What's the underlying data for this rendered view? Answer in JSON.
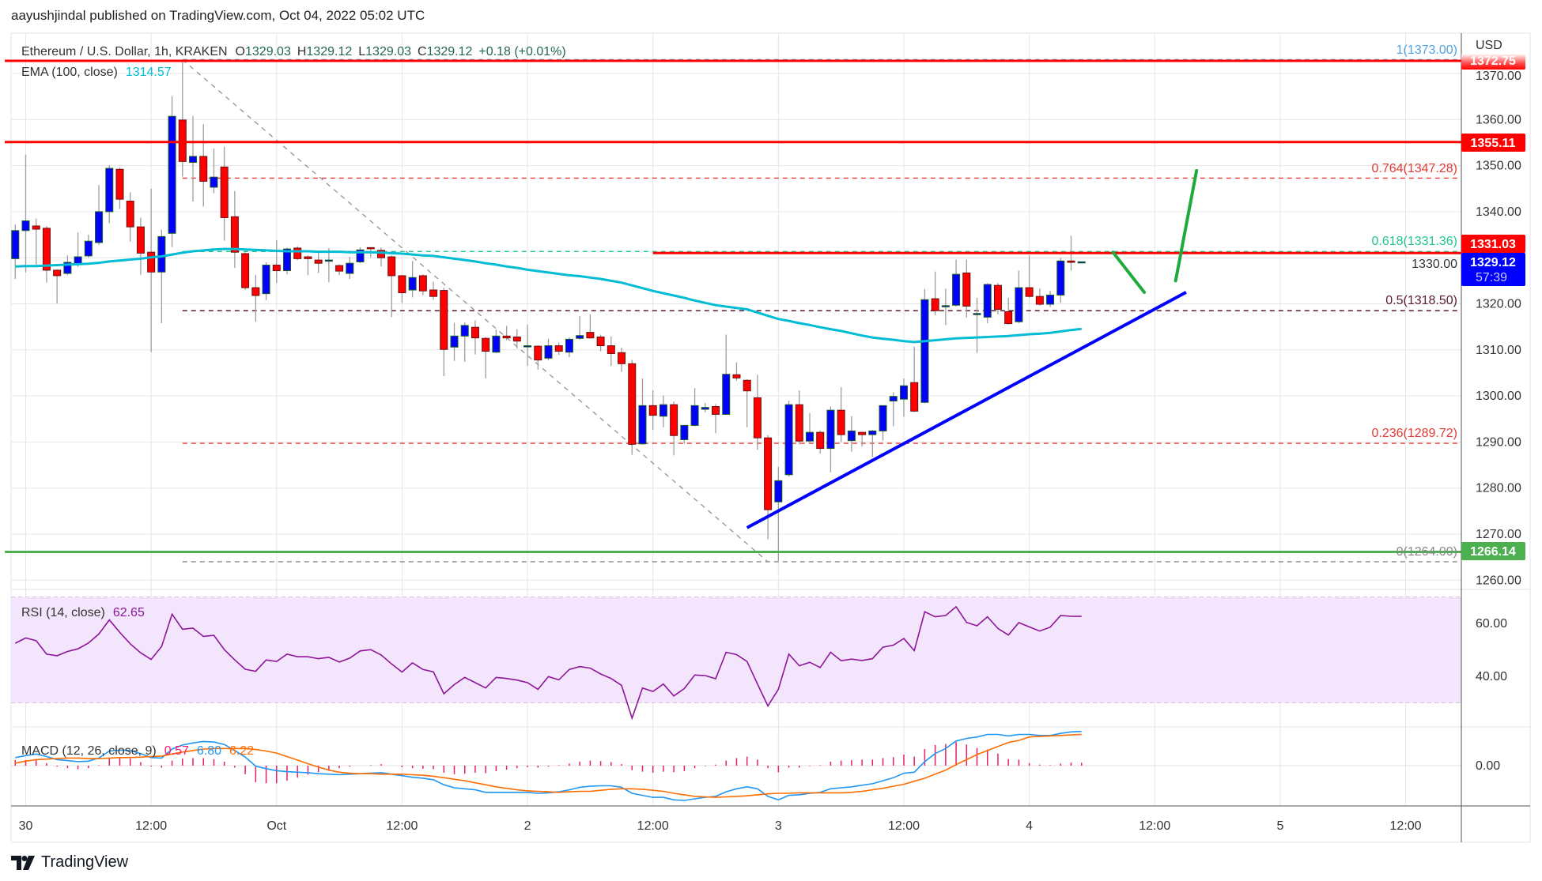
{
  "header": {
    "publish_line": "aayushjindal published on TradingView.com, Oct 04, 2022 05:02 UTC"
  },
  "legend": {
    "symbol": "Ethereum / U.S. Dollar, 1h, KRAKEN",
    "o_label": "O",
    "o_value": "1329.03",
    "h_label": "H",
    "h_value": "1329.12",
    "l_label": "L",
    "l_value": "1329.03",
    "c_label": "C",
    "c_value": "1329.12",
    "change": "+0.18 (+0.01%)",
    "ema_label": "EMA (100, close)",
    "ema_value": "1314.57",
    "rsi_label": "RSI (14, close)",
    "rsi_value": "62.65",
    "macd_label": "MACD (12, 26, close, 9)",
    "macd_hist": "0.57",
    "macd_value": "6.80",
    "macd_signal": "6.22"
  },
  "price_axis": {
    "currency": "USD",
    "ticks": [
      "1370.00",
      "1360.00",
      "1350.00",
      "1340.00",
      "1330.00",
      "1320.00",
      "1310.00",
      "1300.00",
      "1290.00",
      "1280.00",
      "1270.00",
      "1260.00"
    ],
    "badges": {
      "r1": "1372.75",
      "r2": "1355.11",
      "r3": "1331.03",
      "last": "1329.12",
      "countdown": "57:39",
      "support": "1266.14"
    }
  },
  "rsi_axis": {
    "ticks": [
      "60.00",
      "40.00"
    ]
  },
  "macd_axis": {
    "ticks": [
      "0.00"
    ]
  },
  "time_axis": {
    "labels": [
      "30",
      "12:00",
      "Oct",
      "12:00",
      "2",
      "12:00",
      "3",
      "12:00",
      "4",
      "12:00",
      "5",
      "12:00"
    ]
  },
  "fib_labels": {
    "l1": "1(1373.00)",
    "l0764": "0.764(1347.28)",
    "l0618": "0.618(1331.36)",
    "l05": "0.5(1318.50)",
    "l0236": "0.236(1289.72)",
    "l0": "0(1264.00)"
  },
  "logo": {
    "text": "TradingView"
  },
  "colors": {
    "up": "#0000ff",
    "down": "#ff0000",
    "ema": "#00bcd4",
    "rsi": "#8e1599",
    "macd": "#2196f3",
    "signal": "#ff6d00",
    "hist": "#e91e63",
    "resistance": "#ff0000",
    "support": "#4caf50",
    "trendline": "#0000ff",
    "projection": "#1faa3c"
  },
  "chart_data": {
    "type": "candlestick",
    "title": "Ethereum / U.S. Dollar, 1h, KRAKEN",
    "interval": "1h",
    "start": "2022-09-29 23:00",
    "ylim": [
      1255,
      1377
    ],
    "xlim": [
      "2022-09-29 22:00",
      "2022-10-05 17:00"
    ],
    "candles_ohlc": [
      [
        1329.8,
        1337.2,
        1325.4,
        1335.9
      ],
      [
        1335.9,
        1352.4,
        1326.8,
        1338.0
      ],
      [
        1336.9,
        1338.5,
        1328.5,
        1336.2
      ],
      [
        1336.4,
        1336.9,
        1324.6,
        1327.3
      ],
      [
        1327.3,
        1327.5,
        1320.1,
        1326.1
      ],
      [
        1326.6,
        1330.5,
        1326.2,
        1329.0
      ],
      [
        1328.6,
        1335.5,
        1328.0,
        1330.2
      ],
      [
        1330.4,
        1335.0,
        1330.0,
        1333.6
      ],
      [
        1333.3,
        1345.8,
        1332.8,
        1340.0
      ],
      [
        1340.0,
        1350.1,
        1337.5,
        1349.4
      ],
      [
        1349.2,
        1349.6,
        1340.6,
        1342.7
      ],
      [
        1342.3,
        1344.2,
        1333.5,
        1336.7
      ],
      [
        1336.7,
        1338.7,
        1326.3,
        1331.0
      ],
      [
        1331.2,
        1345.0,
        1309.5,
        1326.9
      ],
      [
        1326.9,
        1336.1,
        1315.8,
        1334.6
      ],
      [
        1335.3,
        1365.1,
        1332.3,
        1360.7
      ],
      [
        1359.9,
        1373.0,
        1347.6,
        1350.9
      ],
      [
        1350.7,
        1360.8,
        1342.2,
        1352.0
      ],
      [
        1352.0,
        1359.0,
        1341.1,
        1346.6
      ],
      [
        1345.3,
        1353.7,
        1344.0,
        1347.5
      ],
      [
        1349.7,
        1354.1,
        1333.7,
        1338.7
      ],
      [
        1338.9,
        1344.5,
        1327.8,
        1331.2
      ],
      [
        1330.9,
        1331.2,
        1323.0,
        1323.5
      ],
      [
        1323.5,
        1326.3,
        1316.1,
        1321.8
      ],
      [
        1322.2,
        1329.0,
        1320.8,
        1328.4
      ],
      [
        1328.4,
        1333.8,
        1324.5,
        1327.2
      ],
      [
        1327.2,
        1332.2,
        1326.4,
        1331.9
      ],
      [
        1332.1,
        1332.5,
        1329.5,
        1329.8
      ],
      [
        1330.2,
        1330.5,
        1326.2,
        1329.8
      ],
      [
        1329.5,
        1331.1,
        1326.7,
        1328.8
      ],
      [
        1329.5,
        1332.1,
        1324.7,
        1329.5
      ],
      [
        1328.3,
        1328.6,
        1326.2,
        1327.1
      ],
      [
        1326.6,
        1330.2,
        1325.4,
        1328.8
      ],
      [
        1329.1,
        1332.3,
        1328.8,
        1331.7
      ],
      [
        1332.2,
        1332.3,
        1330.1,
        1332.1
      ],
      [
        1331.6,
        1332.2,
        1328.1,
        1330.0
      ],
      [
        1330.2,
        1330.5,
        1317.1,
        1326.1
      ],
      [
        1326.1,
        1326.3,
        1320.2,
        1322.4
      ],
      [
        1323.0,
        1329.3,
        1321.4,
        1325.7
      ],
      [
        1326.1,
        1326.4,
        1321.9,
        1322.8
      ],
      [
        1323.0,
        1324.8,
        1320.9,
        1321.6
      ],
      [
        1322.9,
        1323.5,
        1304.3,
        1310.1
      ],
      [
        1310.6,
        1315.9,
        1307.6,
        1313.0
      ],
      [
        1313.0,
        1316.0,
        1307.4,
        1315.3
      ],
      [
        1314.9,
        1316.4,
        1309.0,
        1312.6
      ],
      [
        1312.5,
        1312.8,
        1303.8,
        1309.7
      ],
      [
        1309.5,
        1314.4,
        1309.3,
        1313.0
      ],
      [
        1313.0,
        1315.2,
        1312.1,
        1312.6
      ],
      [
        1312.8,
        1314.5,
        1310.3,
        1311.9
      ],
      [
        1310.8,
        1315.5,
        1306.5,
        1310.9
      ],
      [
        1310.8,
        1311.0,
        1305.7,
        1307.8
      ],
      [
        1308.2,
        1312.4,
        1307.7,
        1310.9
      ],
      [
        1310.9,
        1311.6,
        1308.9,
        1309.7
      ],
      [
        1309.5,
        1312.7,
        1308.4,
        1312.3
      ],
      [
        1312.5,
        1317.3,
        1312.2,
        1313.1
      ],
      [
        1313.8,
        1317.7,
        1312.4,
        1312.6
      ],
      [
        1312.8,
        1313.3,
        1309.7,
        1310.9
      ],
      [
        1310.9,
        1312.9,
        1306.5,
        1309.2
      ],
      [
        1309.4,
        1310.5,
        1305.2,
        1307.0
      ],
      [
        1307.0,
        1307.8,
        1287.2,
        1289.5
      ],
      [
        1289.6,
        1303.8,
        1289.4,
        1297.9
      ],
      [
        1297.9,
        1301.2,
        1292.6,
        1295.8
      ],
      [
        1295.6,
        1300.1,
        1293.2,
        1298.1
      ],
      [
        1298.1,
        1298.8,
        1287.1,
        1291.4
      ],
      [
        1290.5,
        1293.7,
        1289.6,
        1293.6
      ],
      [
        1293.6,
        1301.7,
        1293.4,
        1297.9
      ],
      [
        1297.1,
        1298.5,
        1296.4,
        1297.5
      ],
      [
        1297.7,
        1298.2,
        1291.9,
        1296.0
      ],
      [
        1296.0,
        1313.3,
        1295.9,
        1304.7
      ],
      [
        1304.6,
        1307.3,
        1303.3,
        1303.9
      ],
      [
        1303.4,
        1303.6,
        1293.2,
        1301.1
      ],
      [
        1299.6,
        1304.6,
        1288.3,
        1290.9
      ],
      [
        1290.9,
        1291.5,
        1268.9,
        1275.3
      ],
      [
        1277.0,
        1284.6,
        1264.2,
        1281.6
      ],
      [
        1282.9,
        1299.0,
        1282.5,
        1298.1
      ],
      [
        1298.1,
        1301.2,
        1289.5,
        1290.2
      ],
      [
        1290.2,
        1296.3,
        1289.7,
        1292.1
      ],
      [
        1292.1,
        1292.5,
        1287.5,
        1288.6
      ],
      [
        1288.6,
        1297.7,
        1283.4,
        1296.9
      ],
      [
        1296.9,
        1301.9,
        1290.0,
        1291.6
      ],
      [
        1290.3,
        1295.6,
        1287.9,
        1292.4
      ],
      [
        1292.1,
        1292.1,
        1289.0,
        1291.6
      ],
      [
        1291.6,
        1292.6,
        1286.8,
        1292.4
      ],
      [
        1292.4,
        1297.9,
        1290.3,
        1297.9
      ],
      [
        1298.9,
        1300.8,
        1293.4,
        1299.9
      ],
      [
        1299.3,
        1303.8,
        1295.5,
        1302.2
      ],
      [
        1302.9,
        1310.7,
        1296.5,
        1296.7
      ],
      [
        1298.6,
        1323.2,
        1298.4,
        1320.9
      ],
      [
        1321.1,
        1327.0,
        1317.5,
        1318.5
      ],
      [
        1319.6,
        1323.3,
        1315.4,
        1319.6
      ],
      [
        1319.7,
        1329.6,
        1319.4,
        1326.4
      ],
      [
        1326.7,
        1329.6,
        1317.0,
        1319.5
      ],
      [
        1317.9,
        1321.3,
        1309.3,
        1317.9
      ],
      [
        1317.1,
        1324.5,
        1315.8,
        1324.2
      ],
      [
        1324.0,
        1324.5,
        1317.7,
        1318.8
      ],
      [
        1318.3,
        1321.3,
        1315.5,
        1315.7
      ],
      [
        1316.1,
        1327.2,
        1315.8,
        1323.5
      ],
      [
        1323.5,
        1330.5,
        1321.3,
        1321.6
      ],
      [
        1321.6,
        1323.3,
        1319.6,
        1319.9
      ],
      [
        1319.9,
        1322.8,
        1319.3,
        1321.9
      ],
      [
        1321.9,
        1330.0,
        1320.2,
        1329.3
      ],
      [
        1329.3,
        1334.8,
        1327.2,
        1329.0
      ],
      [
        1329.03,
        1329.12,
        1329.03,
        1329.12
      ]
    ],
    "ema100": [
      1328.1,
      1328.2,
      1328.2,
      1328.3,
      1328.4,
      1328.5,
      1328.6,
      1328.7,
      1328.9,
      1329.2,
      1329.4,
      1329.6,
      1329.8,
      1330.1,
      1330.3,
      1330.7,
      1331.1,
      1331.4,
      1331.6,
      1331.8,
      1331.9,
      1331.9,
      1331.8,
      1331.7,
      1331.6,
      1331.5,
      1331.4,
      1331.4,
      1331.4,
      1331.3,
      1331.3,
      1331.3,
      1331.2,
      1331.2,
      1331.2,
      1331.1,
      1331.0,
      1330.9,
      1330.7,
      1330.5,
      1330.4,
      1330.1,
      1329.8,
      1329.5,
      1329.2,
      1328.8,
      1328.5,
      1328.1,
      1327.8,
      1327.4,
      1327.1,
      1326.8,
      1326.5,
      1326.2,
      1326.0,
      1325.7,
      1325.4,
      1325.0,
      1324.6,
      1324.0,
      1323.4,
      1322.8,
      1322.3,
      1321.8,
      1321.3,
      1320.7,
      1320.2,
      1319.7,
      1319.4,
      1319.1,
      1318.8,
      1318.1,
      1317.4,
      1316.7,
      1316.3,
      1315.8,
      1315.4,
      1314.9,
      1314.5,
      1314.1,
      1313.6,
      1313.1,
      1312.7,
      1312.4,
      1312.2,
      1311.9,
      1311.7,
      1311.9,
      1312.1,
      1312.3,
      1312.5,
      1312.6,
      1312.7,
      1312.8,
      1312.9,
      1313.0,
      1313.2,
      1313.4,
      1313.5,
      1313.7,
      1314.0,
      1314.3,
      1314.57
    ],
    "rsi": [
      52.5,
      54.5,
      53.5,
      48.4,
      47.8,
      49.4,
      50.4,
      52.6,
      56,
      61.3,
      56.6,
      52.3,
      48.9,
      46.4,
      51.3,
      63.5,
      57.8,
      58.2,
      55.1,
      55.5,
      50.1,
      46.2,
      42.7,
      41.9,
      46.2,
      45.6,
      48.4,
      47.4,
      47.4,
      46.7,
      47.2,
      45.4,
      46.9,
      49.6,
      50.1,
      48.1,
      44.7,
      41.6,
      45.1,
      42.6,
      41.7,
      33.4,
      36.9,
      39.6,
      37.6,
      35.6,
      39.6,
      39.2,
      38.6,
      37.6,
      35.1,
      39.9,
      38.7,
      42.6,
      43.7,
      43.1,
      40.9,
      39.2,
      36.6,
      24.2,
      35.6,
      34.3,
      37.1,
      32.6,
      35.4,
      40.5,
      40.3,
      39.1,
      49.1,
      48.2,
      45.6,
      37.1,
      28.8,
      35.1,
      48.4,
      44,
      45.3,
      43.3,
      49.1,
      45.9,
      46.5,
      46,
      46.7,
      51,
      51.8,
      54.3,
      49.7,
      64.4,
      62.5,
      63,
      66.3,
      60.4,
      59.1,
      62.5,
      58.1,
      55.6,
      60.3,
      58.7,
      57.1,
      58.6,
      63,
      62.7,
      62.65
    ],
    "rsi_bands": [
      70,
      30
    ],
    "macd": [
      1.6,
      2.0,
      2.3,
      1.8,
      1.2,
      1.0,
      0.8,
      0.9,
      1.5,
      2.9,
      3.1,
      3.0,
      2.4,
      1.6,
      1.5,
      3.3,
      4.1,
      4.5,
      4.8,
      4.7,
      4.2,
      3.0,
      1.7,
      -0.1,
      -0.6,
      -1.0,
      -1.2,
      -1.3,
      -1.4,
      -1.6,
      -1.7,
      -1.8,
      -1.7,
      -1.6,
      -1.5,
      -1.4,
      -1.7,
      -2.0,
      -2.3,
      -2.5,
      -2.8,
      -3.8,
      -4.4,
      -4.6,
      -4.8,
      -5.3,
      -5.3,
      -5.3,
      -5.3,
      -5.3,
      -5.5,
      -5.4,
      -5.2,
      -4.8,
      -4.3,
      -4.1,
      -4.0,
      -4.0,
      -4.3,
      -5.5,
      -5.9,
      -6.3,
      -6.3,
      -6.8,
      -6.9,
      -6.6,
      -6.3,
      -6.1,
      -5.2,
      -4.6,
      -4.2,
      -4.6,
      -6.1,
      -6.8,
      -5.9,
      -5.8,
      -5.5,
      -5.3,
      -4.6,
      -4.4,
      -4.2,
      -3.9,
      -3.6,
      -3.0,
      -2.4,
      -1.5,
      -1.3,
      0.8,
      2.4,
      3.4,
      4.9,
      5.4,
      5.7,
      6.2,
      6.2,
      5.9,
      6.2,
      6.2,
      6.0,
      6.0,
      6.4,
      6.7,
      6.8
    ],
    "signal": [
      0.5,
      0.9,
      1.2,
      1.3,
      1.4,
      1.5,
      1.5,
      1.4,
      1.4,
      1.5,
      1.6,
      1.6,
      1.7,
      1.8,
      1.9,
      2.3,
      2.7,
      3.0,
      3.3,
      3.4,
      3.4,
      3.4,
      3.4,
      3.2,
      2.9,
      2.5,
      1.8,
      1.1,
      0.4,
      -0.3,
      -0.9,
      -1.3,
      -1.5,
      -1.6,
      -1.6,
      -1.7,
      -1.7,
      -1.7,
      -1.8,
      -1.9,
      -2.1,
      -2.4,
      -2.7,
      -3.0,
      -3.4,
      -3.8,
      -4.2,
      -4.5,
      -4.8,
      -5.0,
      -5.1,
      -5.2,
      -5.3,
      -5.2,
      -5.1,
      -5.1,
      -4.9,
      -4.7,
      -4.6,
      -4.6,
      -4.7,
      -4.9,
      -5.1,
      -5.5,
      -5.8,
      -6.1,
      -6.2,
      -6.3,
      -6.2,
      -6.1,
      -6.0,
      -5.8,
      -5.6,
      -5.5,
      -5.5,
      -5.4,
      -5.4,
      -5.4,
      -5.4,
      -5.4,
      -5.3,
      -5.1,
      -4.8,
      -4.5,
      -4.1,
      -3.7,
      -3.1,
      -2.5,
      -1.7,
      -0.9,
      0.2,
      1.2,
      2.2,
      3.0,
      3.8,
      4.6,
      5.0,
      5.7,
      5.8,
      5.9,
      6.0,
      6.1,
      6.22
    ],
    "horizontal_lines": [
      {
        "price": 1372.75,
        "color": "#ff0000",
        "from": "2022-09-29 22:00"
      },
      {
        "price": 1355.11,
        "color": "#ff0000",
        "from": "2022-09-29 22:00"
      },
      {
        "price": 1331.03,
        "color": "#ff0000",
        "from": "2022-10-02 12:00"
      },
      {
        "price": 1266.14,
        "color": "#4caf50",
        "from": "2022-09-29 22:00"
      }
    ],
    "fibonacci": {
      "from": "2022-09-30 15:00",
      "high": 1373.0,
      "to": "2022-10-02 23:00",
      "low": 1264.0,
      "levels": [
        {
          "ratio": 1,
          "price": 1373.0,
          "color": "#4fa3e0"
        },
        {
          "ratio": 0.764,
          "price": 1347.28,
          "color": "#e53935"
        },
        {
          "ratio": 0.618,
          "price": 1331.36,
          "color": "#22c38e"
        },
        {
          "ratio": 0.5,
          "price": 1318.5,
          "color": "#5d1a2e"
        },
        {
          "ratio": 0.236,
          "price": 1289.72,
          "color": "#e53935"
        },
        {
          "ratio": 0,
          "price": 1264.0,
          "color": "#888888"
        }
      ]
    },
    "trendline": {
      "from": [
        "2022-10-02 21:00",
        1271.4
      ],
      "to": [
        "2022-10-04 15:00",
        1322.5
      ]
    },
    "projection": [
      {
        "from": [
          "2022-10-04 08:00",
          1331.2
        ],
        "to": [
          "2022-10-04 11:00",
          1322.5
        ]
      },
      {
        "from": [
          "2022-10-04 14:00",
          1325.0
        ],
        "to": [
          "2022-10-04 16:00",
          1348.9
        ]
      }
    ]
  }
}
